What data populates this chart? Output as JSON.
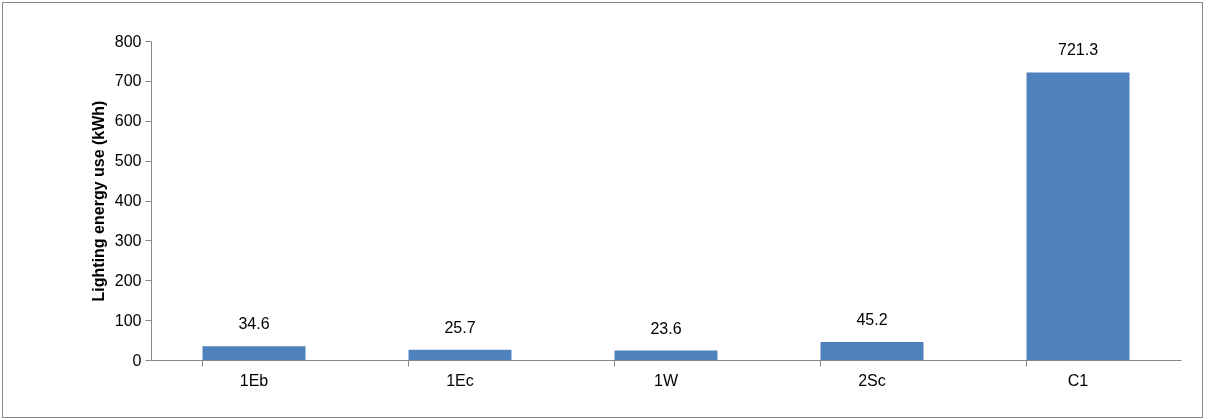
{
  "chart_data": {
    "type": "bar",
    "ylabel": "Lighting energy use (kWh)",
    "categories": [
      "1Eb",
      "1Ec",
      "1W",
      "2Sc",
      "C1"
    ],
    "values": [
      34.6,
      25.7,
      23.6,
      45.2,
      721.3
    ],
    "color": "#4f81bd",
    "ylim": [
      0,
      800
    ],
    "yticks": [
      0,
      100,
      200,
      300,
      400,
      500,
      600,
      700,
      800
    ],
    "data_labels": true,
    "grid": false
  }
}
